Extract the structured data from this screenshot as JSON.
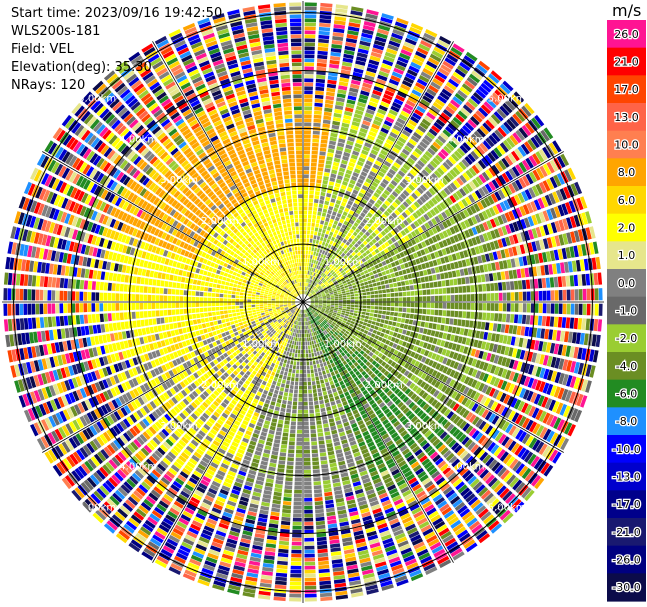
{
  "header": {
    "start_time": "Start time: 2023/09/16 19:42:50",
    "instrument": "WLS200s-181",
    "field": "Field: VEL",
    "elevation": "Elevation(deg): 35.30",
    "nrays": "NRays: 120"
  },
  "chart_data": {
    "type": "heatmap",
    "projection": "polar-ppi",
    "field": "VEL",
    "rays": 120,
    "range_rings_km": [
      1.0,
      2.0,
      3.0,
      4.0,
      5.0
    ],
    "ring_labels": [
      "1.00km",
      "2.00km",
      "3.00km",
      "4.00km",
      "5.00km"
    ],
    "max_range_km": 5.2,
    "colorbar": {
      "unit": "m/s",
      "ticks": [
        "26.0",
        "21.0",
        "17.0",
        "13.0",
        "10.0",
        "8.0",
        "6.0",
        "2.0",
        "1.0",
        "0.0",
        "-1.0",
        "-2.0",
        "-4.0",
        "-6.0",
        "-8.0",
        "-10.0",
        "-13.0",
        "-17.0",
        "-21.0",
        "-26.0",
        "-30.0"
      ],
      "colors": [
        "#ff1493",
        "#ff0000",
        "#ff4500",
        "#ff6347",
        "#ff7f50",
        "#ffa500",
        "#ffd700",
        "#ffff00",
        "#e6e68c",
        "#808080",
        "#696969",
        "#9acd32",
        "#6b8e23",
        "#228b22",
        "#1e90ff",
        "#0000ff",
        "#0000cd",
        "#00008b",
        "#191970",
        "#000080",
        "#0b0b4a"
      ]
    }
  }
}
